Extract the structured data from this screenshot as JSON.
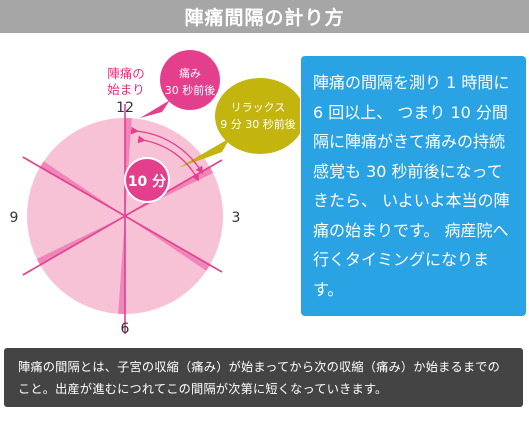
{
  "header": {
    "title": "陣痛間隔の計り方"
  },
  "clock": {
    "label_start": "陣痛の\n始まり",
    "numbers": {
      "n12": "12",
      "n3": "3",
      "n6": "6",
      "n9": "9"
    },
    "bubble_pain": {
      "line1": "痛み",
      "line2": "30 秒前後"
    },
    "bubble_relax": {
      "line1": "リラックス",
      "line2": "9 分 30 秒前後"
    },
    "interval_badge": "10 分",
    "colors": {
      "face": "#f7c1d6",
      "pain_wedge": "#ee86b8",
      "accent": "#e43f8d",
      "relax": "#c3b50d",
      "label": "#e8307a"
    }
  },
  "info": {
    "text": "陣痛の間隔を測り 1 時間に 6 回以上、 つまり 10 分間隔に陣痛がきて痛みの持続感覚も 30 秒前後になってきたら、 いよいよ本当の陣痛の始まりです。 病産院へ行くタイミングになります。"
  },
  "footer": {
    "text": "陣痛の間隔とは、子宮の収縮（痛み）が始まってから次の収縮（痛み）か始まるまでのこと。出産が進むにつれてこの間隔が次第に短くなっていきます。"
  }
}
